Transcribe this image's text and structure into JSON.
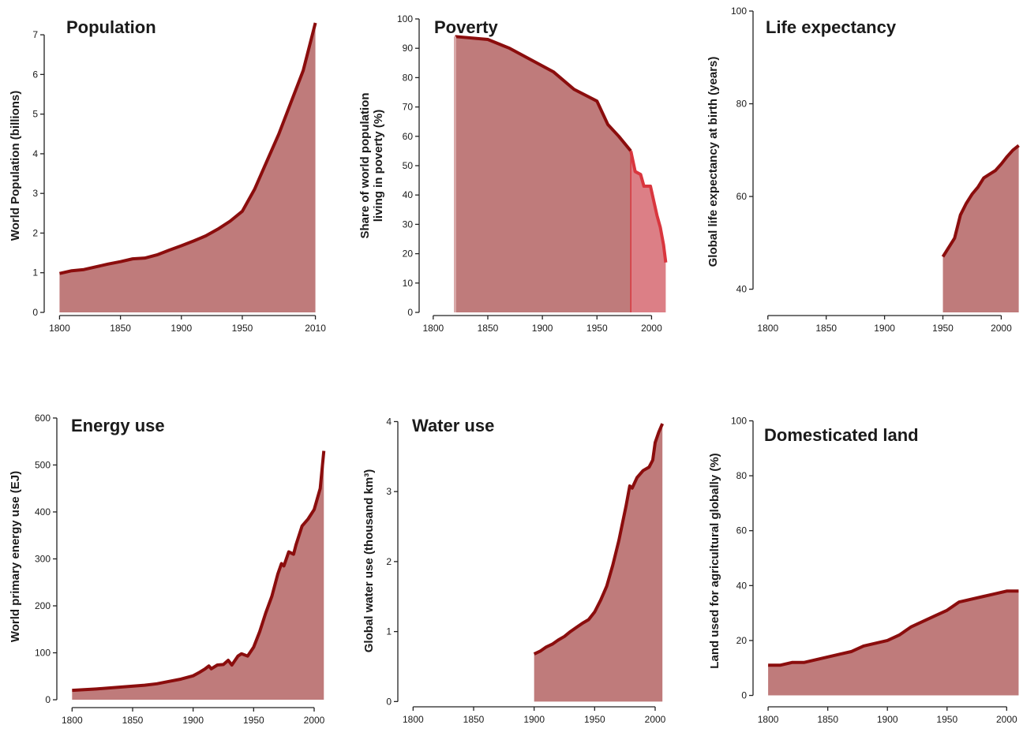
{
  "colors": {
    "line": "#8b0d0d",
    "fill": "#bf7b7b",
    "line_alt": "#d9363e",
    "fill_alt": "#dc7f86"
  },
  "chart_data": [
    {
      "type": "area",
      "title": "Population",
      "xlabel": "",
      "ylabel": "World Population (billions)",
      "xlim": [
        1790,
        2020
      ],
      "ylim": [
        0,
        7.4
      ],
      "xticks": [
        1800,
        1850,
        1900,
        1950,
        2010
      ],
      "yticks": [
        0,
        1,
        2,
        3,
        4,
        5,
        6,
        7
      ],
      "series": [
        {
          "x": [
            1800,
            1810,
            1820,
            1830,
            1840,
            1850,
            1860,
            1870,
            1880,
            1890,
            1900,
            1910,
            1920,
            1930,
            1940,
            1950,
            1960,
            1970,
            1980,
            1990,
            2000,
            2010
          ],
          "y": [
            0.98,
            1.05,
            1.08,
            1.15,
            1.22,
            1.28,
            1.35,
            1.37,
            1.45,
            1.57,
            1.68,
            1.8,
            1.93,
            2.1,
            2.3,
            2.55,
            3.1,
            3.8,
            4.5,
            5.3,
            6.1,
            7.3
          ]
        }
      ]
    },
    {
      "type": "area",
      "title": "Poverty",
      "xlabel": "",
      "ylabel": "Share of world population living in poverty (%)",
      "xlim": [
        1790,
        2025
      ],
      "ylim": [
        0,
        100
      ],
      "xticks": [
        1800,
        1850,
        1900,
        1950,
        2000
      ],
      "yticks": [
        0,
        10,
        20,
        30,
        40,
        50,
        60,
        70,
        80,
        90,
        100
      ],
      "series": [
        {
          "x": [
            1820,
            1850,
            1870,
            1890,
            1910,
            1929,
            1950,
            1960,
            1970,
            1981
          ],
          "y": [
            94,
            93,
            90,
            86,
            82,
            76,
            72,
            64,
            60,
            55
          ]
        },
        {
          "x": [
            1981,
            1985,
            1990,
            1993,
            1996,
            1999,
            2002,
            2005,
            2008,
            2011,
            2013
          ],
          "y": [
            55,
            48,
            47,
            43,
            43,
            43,
            38,
            33,
            29,
            23,
            17
          ]
        }
      ]
    },
    {
      "type": "area",
      "title": "Life expectancy",
      "xlabel": "",
      "ylabel": "Global life expectancy at birth (years)",
      "xlim": [
        1790,
        2020
      ],
      "ylim": [
        35,
        100
      ],
      "xticks": [
        1800,
        1850,
        1900,
        1950,
        2000
      ],
      "yticks": [
        40,
        60,
        80,
        100
      ],
      "series": [
        {
          "x": [
            1950,
            1955,
            1960,
            1965,
            1970,
            1975,
            1980,
            1985,
            1990,
            1995,
            2000,
            2005,
            2010,
            2015
          ],
          "y": [
            47,
            49,
            51,
            56,
            58.5,
            60.5,
            62,
            64,
            64.8,
            65.6,
            67,
            68.6,
            70,
            71
          ]
        }
      ]
    },
    {
      "type": "area",
      "title": "Energy use",
      "xlabel": "",
      "ylabel": "World primary energy use (EJ)",
      "xlim": [
        1790,
        2015
      ],
      "ylim": [
        -10,
        620
      ],
      "xticks": [
        1800,
        1850,
        1900,
        1950,
        2000
      ],
      "yticks": [
        0,
        100,
        200,
        300,
        400,
        500,
        600
      ],
      "series": [
        {
          "x": [
            1800,
            1820,
            1840,
            1860,
            1870,
            1880,
            1890,
            1900,
            1905,
            1910,
            1913,
            1915,
            1920,
            1925,
            1929,
            1932,
            1937,
            1940,
            1945,
            1950,
            1955,
            1960,
            1965,
            1970,
            1973,
            1975,
            1979,
            1983,
            1985,
            1990,
            1995,
            2000,
            2005,
            2008
          ],
          "y": [
            20,
            23,
            27,
            31,
            34,
            39,
            44,
            51,
            58,
            66,
            72,
            66,
            74,
            75,
            84,
            74,
            93,
            98,
            93,
            112,
            145,
            185,
            220,
            268,
            290,
            285,
            315,
            310,
            330,
            370,
            385,
            405,
            450,
            530
          ]
        }
      ]
    },
    {
      "type": "area",
      "title": "Water use",
      "xlabel": "",
      "ylabel": "Global water use (thousand km³)",
      "xlim": [
        1790,
        2015
      ],
      "ylim": [
        -0.03,
        4.05
      ],
      "xticks": [
        1800,
        1850,
        1900,
        1950,
        2000
      ],
      "yticks": [
        0,
        1,
        2,
        3,
        4
      ],
      "series": [
        {
          "x": [
            1900,
            1905,
            1910,
            1915,
            1920,
            1925,
            1930,
            1935,
            1940,
            1945,
            1950,
            1955,
            1960,
            1965,
            1970,
            1973,
            1976,
            1979,
            1981,
            1985,
            1990,
            1995,
            1998,
            2000,
            2003,
            2006
          ],
          "y": [
            0.68,
            0.72,
            0.78,
            0.82,
            0.88,
            0.93,
            1.0,
            1.06,
            1.12,
            1.17,
            1.28,
            1.45,
            1.65,
            1.95,
            2.3,
            2.55,
            2.8,
            3.08,
            3.05,
            3.2,
            3.3,
            3.35,
            3.45,
            3.7,
            3.85,
            3.97
          ]
        }
      ]
    },
    {
      "type": "area",
      "title": "Domesticated land",
      "xlabel": "",
      "ylabel": "Land used for agricultural globally (%)",
      "xlim": [
        1790,
        2015
      ],
      "ylim": [
        -3,
        101
      ],
      "xticks": [
        1800,
        1850,
        1900,
        1950,
        2000
      ],
      "yticks": [
        0,
        20,
        40,
        60,
        80,
        100
      ],
      "series": [
        {
          "x": [
            1800,
            1810,
            1820,
            1830,
            1840,
            1850,
            1860,
            1870,
            1880,
            1890,
            1900,
            1910,
            1920,
            1930,
            1940,
            1950,
            1960,
            1970,
            1980,
            1990,
            2000,
            2010
          ],
          "y": [
            11,
            11,
            12,
            12,
            13,
            14,
            15,
            16,
            18,
            19,
            20,
            22,
            25,
            27,
            29,
            31,
            34,
            35,
            36,
            37,
            38,
            38
          ]
        }
      ]
    }
  ]
}
